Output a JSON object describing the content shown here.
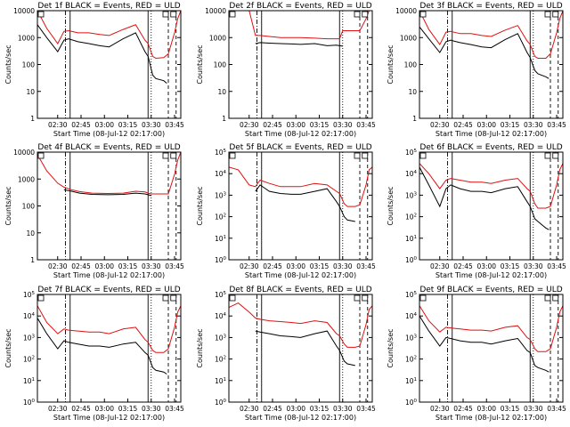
{
  "xlabel": "Start Time (08-Jul-12 02:17:00)",
  "ylabel": "Counts/sec",
  "x_tick_labels": [
    "02:30",
    "02:45",
    "03:00",
    "03:15",
    "03:30",
    "03:45"
  ],
  "colors": {
    "events": "#000000",
    "uld": "#e01010",
    "frame": "#000000"
  },
  "chart_data": [
    {
      "type": "line",
      "title": "Det 1f BLACK = Events, RED = ULD",
      "ylog": true,
      "ylim": [
        1,
        10000
      ],
      "y_ticks": [
        "1",
        "10",
        "100",
        "1000",
        "10000"
      ],
      "series": [
        {
          "name": "BLACK = Events",
          "x": [
            0,
            6,
            13,
            17,
            20,
            26,
            33,
            40,
            46,
            55,
            63,
            69,
            71,
            74,
            76,
            81,
            83
          ],
          "y": [
            3000,
            1000,
            300,
            800,
            900,
            700,
            600,
            500,
            450,
            900,
            1500,
            300,
            200,
            40,
            30,
            25,
            20
          ]
        },
        {
          "name": "RED = ULD",
          "x": [
            0,
            6,
            13,
            17,
            20,
            26,
            33,
            40,
            46,
            55,
            63,
            69,
            71,
            74,
            76,
            81,
            84,
            88,
            90,
            92
          ],
          "y": [
            10000,
            2200,
            600,
            1700,
            1800,
            1500,
            1500,
            1300,
            1200,
            2000,
            3000,
            800,
            600,
            200,
            170,
            180,
            250,
            1500,
            5000,
            10000
          ]
        }
      ],
      "markers": [
        {
          "x": 18,
          "style": "dashdot"
        },
        {
          "x": 21,
          "style": "solid"
        },
        {
          "x": 71,
          "style": "solid"
        },
        {
          "x": 73,
          "style": "dotted"
        },
        {
          "x": 84,
          "style": "dashed"
        },
        {
          "x": 89,
          "style": "dashed"
        }
      ]
    },
    {
      "type": "line",
      "title": "Det 2f BLACK = Events, RED = ULD",
      "ylog": true,
      "ylim": [
        1,
        10000
      ],
      "y_ticks": [
        "1",
        "10",
        "100",
        "1000",
        "10000"
      ],
      "series": [
        {
          "name": "BLACK = Events",
          "x": [
            17,
            20,
            26,
            33,
            40,
            46,
            55,
            63,
            69,
            71,
            73
          ],
          "y": [
            600,
            650,
            620,
            600,
            580,
            560,
            600,
            500,
            520,
            500,
            480
          ]
        },
        {
          "name": "RED = ULD",
          "x": [
            0,
            6,
            13,
            17,
            20,
            26,
            33,
            40,
            46,
            55,
            63,
            69,
            71,
            73,
            84,
            88,
            90,
            92
          ],
          "y": [
            10000,
            10000,
            10000,
            1200,
            1200,
            1100,
            1000,
            1000,
            1000,
            950,
            900,
            900,
            900,
            1800,
            1800,
            5000,
            10000,
            10000
          ]
        }
      ],
      "markers": [
        {
          "x": 18,
          "style": "dashdot"
        },
        {
          "x": 21,
          "style": "solid"
        },
        {
          "x": 71,
          "style": "solid"
        },
        {
          "x": 73,
          "style": "dotted"
        },
        {
          "x": 84,
          "style": "dashed"
        },
        {
          "x": 89,
          "style": "dashed"
        }
      ]
    },
    {
      "type": "line",
      "title": "Det 3f BLACK = Events, RED = ULD",
      "ylog": true,
      "ylim": [
        1,
        10000
      ],
      "y_ticks": [
        "1",
        "10",
        "100",
        "1000",
        "10000"
      ],
      "series": [
        {
          "name": "BLACK = Events",
          "x": [
            0,
            6,
            13,
            17,
            20,
            26,
            33,
            40,
            46,
            55,
            63,
            69,
            71,
            74,
            76,
            81,
            83
          ],
          "y": [
            2500,
            900,
            280,
            700,
            800,
            650,
            550,
            450,
            420,
            850,
            1400,
            280,
            180,
            60,
            45,
            35,
            30
          ]
        },
        {
          "name": "RED = ULD",
          "x": [
            0,
            6,
            13,
            17,
            20,
            26,
            33,
            40,
            46,
            55,
            63,
            69,
            71,
            74,
            76,
            81,
            84,
            88,
            90,
            92
          ],
          "y": [
            10000,
            2000,
            550,
            1600,
            1700,
            1400,
            1400,
            1200,
            1100,
            1900,
            2800,
            750,
            550,
            200,
            170,
            170,
            250,
            1500,
            5000,
            10000
          ]
        }
      ],
      "markers": [
        {
          "x": 18,
          "style": "dashdot"
        },
        {
          "x": 21,
          "style": "solid"
        },
        {
          "x": 71,
          "style": "solid"
        },
        {
          "x": 73,
          "style": "dotted"
        },
        {
          "x": 84,
          "style": "dashed"
        },
        {
          "x": 89,
          "style": "dashed"
        }
      ]
    },
    {
      "type": "line",
      "title": "Det 4f BLACK = Events, RED = ULD",
      "ylog": true,
      "ylim": [
        1,
        10000
      ],
      "y_ticks": [
        "1",
        "10",
        "100",
        "1000",
        "10000"
      ],
      "series": [
        {
          "name": "BLACK = Events",
          "x": [
            17,
            22,
            27,
            35,
            45,
            55,
            63,
            69,
            71,
            73
          ],
          "y": [
            400,
            350,
            300,
            270,
            260,
            270,
            300,
            280,
            260,
            240
          ]
        },
        {
          "name": "RED = ULD",
          "x": [
            0,
            6,
            13,
            17,
            22,
            27,
            35,
            45,
            55,
            63,
            69,
            71,
            73,
            84,
            88,
            90,
            92
          ],
          "y": [
            8000,
            2000,
            700,
            500,
            400,
            340,
            300,
            290,
            300,
            350,
            330,
            300,
            280,
            280,
            1500,
            5000,
            10000
          ]
        }
      ],
      "markers": [
        {
          "x": 18,
          "style": "dashdot"
        },
        {
          "x": 21,
          "style": "solid"
        },
        {
          "x": 71,
          "style": "solid"
        },
        {
          "x": 73,
          "style": "dotted"
        },
        {
          "x": 84,
          "style": "dashed"
        },
        {
          "x": 89,
          "style": "dashed"
        }
      ]
    },
    {
      "type": "line",
      "title": "Det 5f BLACK = Events, RED = ULD",
      "ylog": true,
      "ylim": [
        1,
        100000
      ],
      "y_ticks": [
        "10^0",
        "10^1",
        "10^2",
        "10^3",
        "10^4",
        "10^5"
      ],
      "series": [
        {
          "name": "BLACK = Events",
          "x": [
            17,
            20,
            26,
            33,
            40,
            46,
            55,
            63,
            69,
            71,
            74,
            76,
            81
          ],
          "y": [
            1500,
            3000,
            1500,
            1200,
            1100,
            1100,
            1500,
            2000,
            500,
            300,
            100,
            70,
            60
          ]
        },
        {
          "name": "RED = ULD",
          "x": [
            0,
            6,
            13,
            17,
            20,
            26,
            33,
            40,
            46,
            55,
            63,
            69,
            71,
            74,
            76,
            81,
            84,
            88,
            90,
            92
          ],
          "y": [
            20000,
            15000,
            3000,
            2500,
            5000,
            3500,
            2500,
            2500,
            2500,
            3500,
            3000,
            1500,
            1200,
            400,
            300,
            300,
            350,
            3000,
            15000,
            20000
          ]
        }
      ],
      "markers": [
        {
          "x": 18,
          "style": "dashdot"
        },
        {
          "x": 21,
          "style": "solid"
        },
        {
          "x": 71,
          "style": "solid"
        },
        {
          "x": 73,
          "style": "dotted"
        },
        {
          "x": 84,
          "style": "dashed"
        },
        {
          "x": 89,
          "style": "dashed"
        }
      ]
    },
    {
      "type": "line",
      "title": "Det 6f BLACK = Events, RED = ULD",
      "ylog": true,
      "ylim": [
        1,
        100000
      ],
      "y_ticks": [
        "10^0",
        "10^1",
        "10^2",
        "10^3",
        "10^4",
        "10^5"
      ],
      "series": [
        {
          "name": "BLACK = Events",
          "x": [
            0,
            6,
            13,
            17,
            20,
            26,
            33,
            40,
            46,
            55,
            63,
            69,
            71,
            74,
            76,
            81,
            83
          ],
          "y": [
            20000,
            3000,
            300,
            2000,
            3000,
            2000,
            1500,
            1500,
            1300,
            2000,
            2500,
            500,
            300,
            80,
            60,
            30,
            25
          ]
        },
        {
          "name": "RED = ULD",
          "x": [
            0,
            6,
            13,
            17,
            20,
            26,
            33,
            40,
            46,
            55,
            63,
            69,
            71,
            74,
            76,
            81,
            84,
            88,
            90,
            92
          ],
          "y": [
            30000,
            10000,
            2000,
            5000,
            6000,
            5000,
            4000,
            4000,
            3500,
            5000,
            6000,
            2000,
            1500,
            400,
            250,
            250,
            300,
            3000,
            15000,
            30000
          ]
        }
      ],
      "markers": [
        {
          "x": 18,
          "style": "dashdot"
        },
        {
          "x": 21,
          "style": "solid"
        },
        {
          "x": 71,
          "style": "solid"
        },
        {
          "x": 73,
          "style": "dotted"
        },
        {
          "x": 84,
          "style": "dashed"
        },
        {
          "x": 89,
          "style": "dashed"
        }
      ]
    },
    {
      "type": "line",
      "title": "Det 7f BLACK = Events, RED = ULD",
      "ylog": true,
      "ylim": [
        1,
        100000
      ],
      "y_ticks": [
        "10^0",
        "10^1",
        "10^2",
        "10^3",
        "10^4",
        "10^5"
      ],
      "series": [
        {
          "name": "BLACK = Events",
          "x": [
            0,
            6,
            13,
            17,
            20,
            26,
            33,
            40,
            46,
            55,
            63,
            69,
            71,
            74,
            76,
            81,
            83
          ],
          "y": [
            8000,
            1500,
            300,
            700,
            600,
            500,
            400,
            400,
            350,
            500,
            600,
            200,
            150,
            40,
            30,
            25,
            20
          ]
        },
        {
          "name": "RED = ULD",
          "x": [
            0,
            6,
            13,
            17,
            20,
            26,
            33,
            40,
            46,
            55,
            63,
            69,
            71,
            74,
            76,
            81,
            84,
            88,
            90,
            92
          ],
          "y": [
            30000,
            5000,
            1500,
            2500,
            2200,
            2000,
            1800,
            1800,
            1500,
            2500,
            3000,
            800,
            600,
            250,
            200,
            200,
            300,
            3000,
            15000,
            30000
          ]
        }
      ],
      "markers": [
        {
          "x": 18,
          "style": "dashdot"
        },
        {
          "x": 21,
          "style": "solid"
        },
        {
          "x": 71,
          "style": "solid"
        },
        {
          "x": 73,
          "style": "dotted"
        },
        {
          "x": 84,
          "style": "dashed"
        },
        {
          "x": 89,
          "style": "dashed"
        }
      ]
    },
    {
      "type": "line",
      "title": "Det 8f BLACK = Events, RED = ULD",
      "ylog": true,
      "ylim": [
        1,
        100000
      ],
      "y_ticks": [
        "10^0",
        "10^1",
        "10^2",
        "10^3",
        "10^4",
        "10^5"
      ],
      "series": [
        {
          "name": "BLACK = Events",
          "x": [
            17,
            20,
            26,
            33,
            40,
            46,
            55,
            63,
            69,
            71,
            74,
            76,
            81
          ],
          "y": [
            2000,
            1800,
            1500,
            1200,
            1100,
            1000,
            1500,
            2000,
            400,
            250,
            80,
            60,
            50
          ]
        },
        {
          "name": "RED = ULD",
          "x": [
            0,
            6,
            13,
            17,
            20,
            26,
            33,
            40,
            46,
            55,
            63,
            69,
            71,
            74,
            76,
            81,
            84,
            88,
            90,
            92
          ],
          "y": [
            25000,
            40000,
            15000,
            8000,
            7000,
            6000,
            5500,
            5000,
            4500,
            6000,
            5000,
            1500,
            1200,
            500,
            350,
            350,
            400,
            4000,
            20000,
            30000
          ]
        }
      ],
      "markers": [
        {
          "x": 18,
          "style": "dashdot"
        },
        {
          "x": 21,
          "style": "solid"
        },
        {
          "x": 71,
          "style": "solid"
        },
        {
          "x": 73,
          "style": "dotted"
        },
        {
          "x": 84,
          "style": "dashed"
        },
        {
          "x": 89,
          "style": "dashed"
        }
      ]
    },
    {
      "type": "line",
      "title": "Det 9f BLACK = Events, RED = ULD",
      "ylog": true,
      "ylim": [
        1,
        100000
      ],
      "y_ticks": [
        "10^0",
        "10^1",
        "10^2",
        "10^3",
        "10^4",
        "10^5"
      ],
      "series": [
        {
          "name": "BLACK = Events",
          "x": [
            0,
            6,
            13,
            17,
            20,
            26,
            33,
            40,
            46,
            55,
            63,
            69,
            71,
            74,
            76,
            81,
            83
          ],
          "y": [
            10000,
            2000,
            400,
            1000,
            900,
            700,
            600,
            600,
            500,
            700,
            900,
            250,
            200,
            50,
            40,
            30,
            25
          ]
        },
        {
          "name": "RED = ULD",
          "x": [
            0,
            6,
            13,
            17,
            20,
            26,
            33,
            40,
            46,
            55,
            63,
            69,
            71,
            74,
            76,
            81,
            84,
            88,
            90,
            92
          ],
          "y": [
            30000,
            6000,
            1800,
            3000,
            2800,
            2500,
            2200,
            2200,
            2000,
            3000,
            3500,
            1000,
            800,
            300,
            220,
            220,
            300,
            3000,
            15000,
            30000
          ]
        }
      ],
      "markers": [
        {
          "x": 18,
          "style": "dashdot"
        },
        {
          "x": 21,
          "style": "solid"
        },
        {
          "x": 71,
          "style": "solid"
        },
        {
          "x": 73,
          "style": "dotted"
        },
        {
          "x": 84,
          "style": "dashed"
        },
        {
          "x": 89,
          "style": "dashed"
        }
      ]
    }
  ]
}
